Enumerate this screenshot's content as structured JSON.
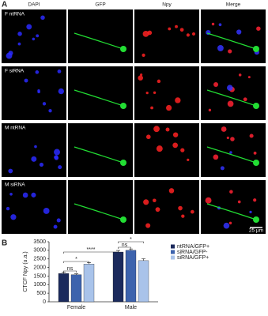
{
  "panel_a": {
    "label": "A",
    "columns": [
      "DAPI",
      "GFP",
      "Npy",
      "Merge"
    ],
    "rows": [
      "F ntRNA",
      "F siRNA",
      "M ntRNA",
      "M siRNA"
    ],
    "scale_bar": "25 µm"
  },
  "panel_b": {
    "label": "B"
  },
  "chart_data": {
    "type": "bar",
    "y_label": "CTCF Npy (u.a.)",
    "categories": [
      "Female",
      "Male"
    ],
    "series": [
      {
        "name": "ntRNA/GFP+",
        "color": "#1b2a5c",
        "values": [
          1650,
          2900
        ],
        "errors": [
          80,
          90
        ]
      },
      {
        "name": "siRNA/GFP-",
        "color": "#3d63ad",
        "values": [
          1580,
          3000
        ],
        "errors": [
          50,
          80
        ]
      },
      {
        "name": "siRNA/GFP+",
        "color": "#a9c3ea",
        "values": [
          2200,
          2400
        ],
        "errors": [
          90,
          110
        ]
      }
    ],
    "ylim": [
      0,
      3500
    ],
    "yticks": [
      0,
      500,
      1000,
      1500,
      2000,
      2500,
      3000,
      3500
    ],
    "annotations": [
      "ns",
      "*",
      "****",
      "ns",
      "*"
    ],
    "legend": "right"
  }
}
